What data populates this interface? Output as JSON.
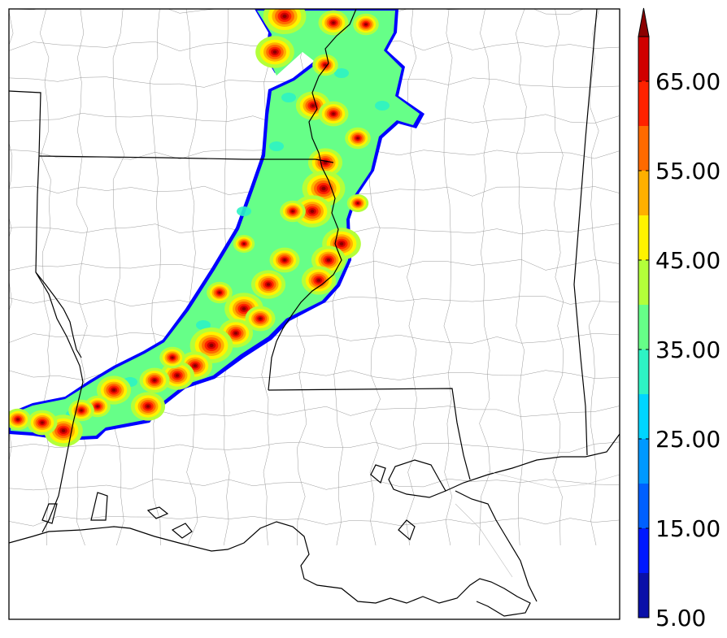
{
  "map": {
    "title": "",
    "field": "",
    "region": "Lower Mississippi Valley / Louisiana Gulf Coast",
    "colors": {
      "background": "#ffffff",
      "state_border": "#000000",
      "county_border": "#8a8a8a",
      "coastline": "#000000",
      "outer_edge": "#0000ff"
    }
  },
  "colorbar": {
    "extend": "max",
    "levels": [
      5,
      10,
      15,
      20,
      25,
      30,
      35,
      40,
      45,
      50,
      55,
      60,
      65,
      70
    ],
    "colors": [
      "#0a10a8",
      "#0018ff",
      "#0060ff",
      "#0099ff",
      "#00d5ff",
      "#2ef3c4",
      "#66ff88",
      "#b3ff3a",
      "#fff300",
      "#ffb000",
      "#ff6a00",
      "#ff2200",
      "#d00000",
      "#8b0000"
    ],
    "tick_values": [
      5,
      15,
      25,
      35,
      45,
      55,
      65
    ],
    "tick_labels": [
      "5.00",
      "15.00",
      "25.00",
      "35.00",
      "45.00",
      "55.00",
      "65.00"
    ]
  }
}
